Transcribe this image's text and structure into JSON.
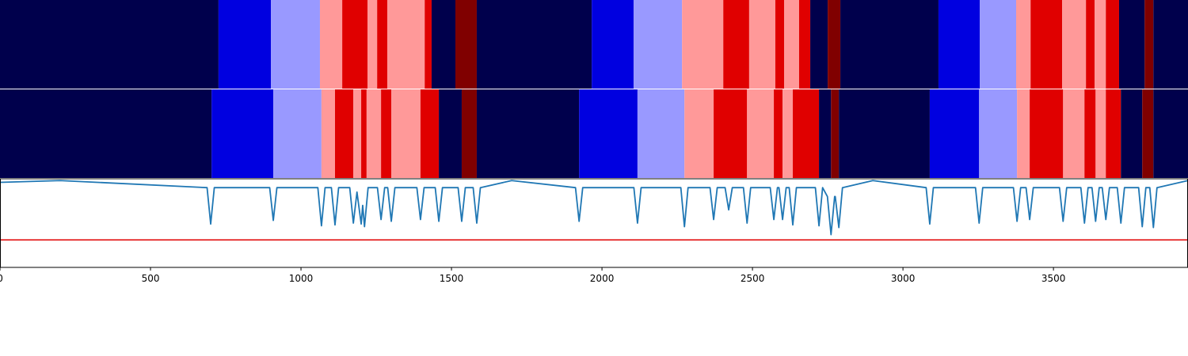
{
  "chart_data": [
    {
      "type": "segments",
      "xlim": [
        0,
        3947
      ],
      "edges": [
        0,
        726,
        900,
        1063,
        1137,
        1221,
        1253,
        1287,
        1411,
        1434,
        1513,
        1584,
        1966,
        2105,
        2266,
        2403,
        2489,
        2576,
        2605,
        2655,
        2692,
        2750,
        2792,
        3118,
        3255,
        3376,
        3424,
        3529,
        3608,
        3637,
        3674,
        3718,
        3803,
        3832,
        3947
      ],
      "colors": [
        "#00004c",
        "#0000e0",
        "#9999ff",
        "#ff9999",
        "#e00000",
        "#ff9999",
        "#e00000",
        "#ff9999",
        "#e00000",
        "#00004c",
        "#800000",
        "#00004c",
        "#0000e0",
        "#9999ff",
        "#ff9999",
        "#e00000",
        "#ff9999",
        "#e00000",
        "#ff9999",
        "#e00000",
        "#00004c",
        "#800000",
        "#00004c",
        "#0000e0",
        "#9999ff",
        "#ff9999",
        "#e00000",
        "#ff9999",
        "#e00000",
        "#ff9999",
        "#e00000",
        "#00004c",
        "#800000",
        "#00004c"
      ]
    },
    {
      "type": "segments",
      "xlim": [
        0,
        3947
      ],
      "edges": [
        0,
        703,
        908,
        1068,
        1113,
        1174,
        1200,
        1218,
        1266,
        1300,
        1397,
        1458,
        1534,
        1584,
        1924,
        2118,
        2274,
        2371,
        2482,
        2571,
        2600,
        2634,
        2721,
        2761,
        2787,
        3089,
        3253,
        3379,
        3421,
        3532,
        3603,
        3640,
        3674,
        3724,
        3795,
        3832,
        3947
      ],
      "colors": [
        "#00004c",
        "#0000e0",
        "#9999ff",
        "#ff9999",
        "#e00000",
        "#ff9999",
        "#e00000",
        "#ff9999",
        "#e00000",
        "#ff9999",
        "#e00000",
        "#00004c",
        "#800000",
        "#00004c",
        "#0000e0",
        "#9999ff",
        "#ff9999",
        "#e00000",
        "#ff9999",
        "#e00000",
        "#ff9999",
        "#e00000",
        "#00004c",
        "#800000",
        "#00004c",
        "#0000e0",
        "#9999ff",
        "#ff9999",
        "#e00000",
        "#ff9999",
        "#e00000",
        "#ff9999",
        "#e00000",
        "#00004c",
        "#800000",
        "#00004c"
      ]
    },
    {
      "type": "line",
      "xlim": [
        0,
        3947
      ],
      "ylim": [
        0,
        1
      ],
      "xticks": [
        0,
        500,
        1000,
        1500,
        2000,
        2500,
        3000,
        3500
      ],
      "color": "#1f77b4",
      "hline": 0.31,
      "hline_color": "#e00000",
      "x": [
        0,
        200,
        688,
        700,
        712,
        896,
        908,
        920,
        1056,
        1068,
        1080,
        1101,
        1113,
        1125,
        1162,
        1174,
        1186,
        1200,
        1205,
        1211,
        1223,
        1254,
        1266,
        1278,
        1288,
        1300,
        1312,
        1385,
        1397,
        1409,
        1446,
        1458,
        1470,
        1522,
        1534,
        1546,
        1572,
        1584,
        1596,
        1700,
        1912,
        1924,
        1936,
        2106,
        2118,
        2130,
        2262,
        2274,
        2286,
        2359,
        2371,
        2383,
        2409,
        2421,
        2433,
        2470,
        2482,
        2494,
        2559,
        2571,
        2583,
        2588,
        2600,
        2612,
        2622,
        2634,
        2646,
        2709,
        2721,
        2733,
        2749,
        2761,
        2773,
        2775,
        2787,
        2799,
        2900,
        3077,
        3089,
        3101,
        3241,
        3253,
        3265,
        3367,
        3379,
        3391,
        3409,
        3421,
        3433,
        3520,
        3532,
        3544,
        3591,
        3603,
        3615,
        3628,
        3640,
        3652,
        3662,
        3674,
        3686,
        3712,
        3724,
        3736,
        3783,
        3795,
        3807,
        3820,
        3832,
        3844,
        3947
      ],
      "values": [
        0.96,
        0.98,
        0.9,
        0.49,
        0.9,
        0.9,
        0.53,
        0.9,
        0.9,
        0.47,
        0.9,
        0.9,
        0.48,
        0.9,
        0.9,
        0.5,
        0.85,
        0.49,
        0.7,
        0.46,
        0.9,
        0.9,
        0.54,
        0.9,
        0.9,
        0.52,
        0.9,
        0.9,
        0.54,
        0.9,
        0.9,
        0.52,
        0.9,
        0.9,
        0.52,
        0.9,
        0.9,
        0.5,
        0.9,
        0.98,
        0.9,
        0.52,
        0.9,
        0.9,
        0.5,
        0.9,
        0.9,
        0.46,
        0.9,
        0.9,
        0.54,
        0.9,
        0.9,
        0.65,
        0.9,
        0.9,
        0.5,
        0.9,
        0.9,
        0.54,
        0.9,
        0.9,
        0.54,
        0.9,
        0.9,
        0.48,
        0.9,
        0.9,
        0.47,
        0.9,
        0.8,
        0.37,
        0.8,
        0.8,
        0.45,
        0.9,
        0.98,
        0.9,
        0.49,
        0.9,
        0.9,
        0.5,
        0.9,
        0.9,
        0.52,
        0.9,
        0.9,
        0.54,
        0.9,
        0.9,
        0.52,
        0.9,
        0.9,
        0.5,
        0.9,
        0.9,
        0.52,
        0.9,
        0.9,
        0.54,
        0.9,
        0.9,
        0.5,
        0.9,
        0.9,
        0.46,
        0.9,
        0.9,
        0.45,
        0.9,
        0.98
      ]
    }
  ]
}
